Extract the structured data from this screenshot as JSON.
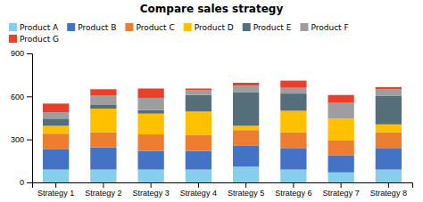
{
  "chart_data": {
    "type": "bar",
    "stacked": true,
    "title": "Compare sales strategy",
    "categories": [
      "Strategy 1",
      "Strategy 2",
      "Strategy 3",
      "Strategy 4",
      "Strategy 5",
      "Strategy 6",
      "Strategy 7",
      "Strategy 8"
    ],
    "series": [
      {
        "name": "Product A",
        "color": "#87CEEB",
        "values": [
          90,
          90,
          90,
          90,
          110,
          90,
          70,
          90
        ]
      },
      {
        "name": "Product B",
        "color": "#4472C4",
        "values": [
          140,
          155,
          130,
          130,
          145,
          150,
          120,
          150
        ]
      },
      {
        "name": "Product C",
        "color": "#ED7D31",
        "values": [
          110,
          105,
          115,
          110,
          110,
          110,
          105,
          110
        ]
      },
      {
        "name": "Product D",
        "color": "#FFC000",
        "values": [
          55,
          165,
          145,
          165,
          30,
          150,
          150,
          55
        ]
      },
      {
        "name": "Product E",
        "color": "#546E7A",
        "values": [
          50,
          25,
          25,
          115,
          235,
          120,
          0,
          200
        ]
      },
      {
        "name": "Product F",
        "color": "#9E9E9E",
        "values": [
          45,
          65,
          85,
          35,
          45,
          40,
          110,
          45
        ]
      },
      {
        "name": "Product G",
        "color": "#E8402A",
        "values": [
          60,
          45,
          65,
          10,
          20,
          50,
          55,
          15
        ]
      }
    ],
    "ylim": [
      0,
      900
    ],
    "yticks": [
      0,
      300,
      600,
      900
    ],
    "grid": false,
    "legend": "top"
  }
}
